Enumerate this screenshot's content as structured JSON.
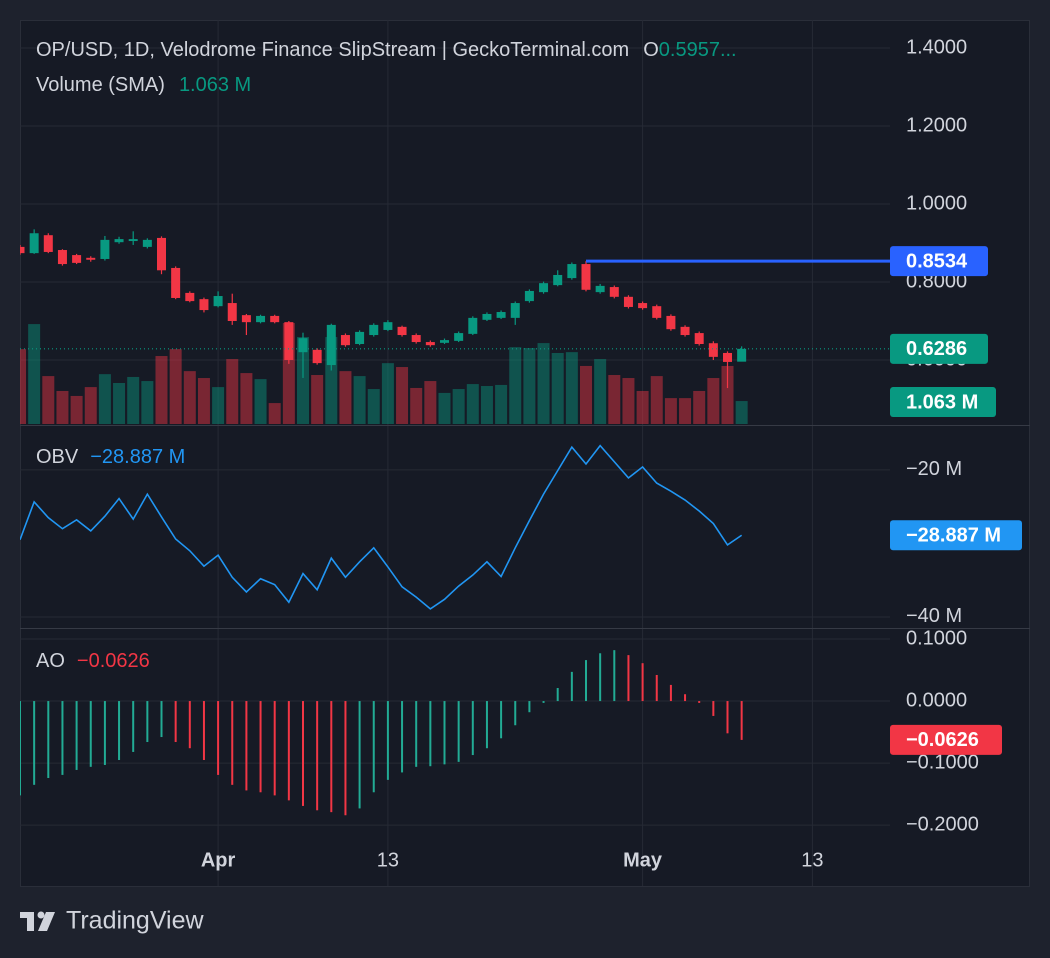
{
  "header": {
    "title": "OP/USD, 1D, Velodrome Finance SlipStream | GeckoTerminal.com",
    "open_label": "O",
    "open_value": "0.5957..."
  },
  "brand": "TradingView",
  "chart_data": [
    {
      "type": "candlestick",
      "categories": [
        null,
        null,
        null,
        null,
        null,
        null,
        null,
        null,
        null,
        null,
        null,
        null,
        null,
        null,
        "Apr",
        null,
        null,
        null,
        null,
        null,
        null,
        null,
        null,
        null,
        null,
        null,
        "13",
        null,
        null,
        null,
        null,
        null,
        null,
        null,
        null,
        null,
        null,
        null,
        null,
        null,
        null,
        null,
        null,
        null,
        "May",
        null,
        null,
        null,
        null,
        null,
        null,
        null,
        null,
        null,
        null,
        null,
        "13"
      ],
      "open": [
        0.89,
        0.874,
        0.92,
        0.882,
        0.869,
        0.862,
        0.859,
        0.902,
        0.905,
        0.89,
        0.913,
        0.836,
        0.772,
        0.756,
        0.738,
        0.746,
        0.715,
        0.697,
        0.713,
        0.697,
        0.62,
        0.626,
        0.587,
        0.664,
        0.641,
        0.664,
        0.677,
        0.685,
        0.664,
        0.646,
        0.644,
        0.649,
        0.667,
        0.703,
        0.708,
        0.708,
        0.751,
        0.774,
        0.792,
        0.81,
        0.846,
        0.774,
        0.787,
        0.762,
        0.746,
        0.738,
        0.713,
        0.685,
        0.669,
        0.643,
        0.618,
        0.5957,
        null,
        null,
        null,
        null,
        null
      ],
      "high": [
        0.895,
        0.935,
        0.925,
        0.884,
        0.872,
        0.866,
        0.918,
        0.916,
        0.93,
        0.912,
        0.917,
        0.84,
        0.776,
        0.76,
        0.776,
        0.77,
        0.718,
        0.716,
        0.716,
        0.7,
        0.67,
        0.63,
        0.693,
        0.668,
        0.676,
        0.694,
        0.702,
        0.688,
        0.668,
        0.65,
        0.655,
        0.673,
        0.712,
        0.722,
        0.727,
        0.75,
        0.781,
        0.801,
        0.83,
        0.85,
        0.8534,
        0.795,
        0.791,
        0.766,
        0.75,
        0.742,
        0.717,
        0.689,
        0.673,
        0.648,
        0.622,
        0.635,
        null,
        null,
        null,
        null,
        null
      ],
      "low": [
        0.87,
        0.872,
        0.874,
        0.842,
        0.846,
        0.852,
        0.855,
        0.898,
        0.895,
        0.886,
        0.82,
        0.756,
        0.748,
        0.722,
        0.735,
        0.69,
        0.664,
        0.694,
        0.694,
        0.59,
        0.554,
        0.588,
        0.573,
        0.634,
        0.638,
        0.66,
        0.674,
        0.66,
        0.642,
        0.634,
        0.641,
        0.646,
        0.664,
        0.7,
        0.705,
        0.69,
        0.747,
        0.77,
        0.789,
        0.806,
        0.776,
        0.77,
        0.758,
        0.732,
        0.729,
        0.704,
        0.675,
        0.66,
        0.637,
        0.6,
        0.528,
        0.598,
        null,
        null,
        null,
        null,
        null
      ],
      "close": [
        0.874,
        0.925,
        0.877,
        0.846,
        0.849,
        0.857,
        0.908,
        0.91,
        0.91,
        0.908,
        0.83,
        0.759,
        0.751,
        0.728,
        0.764,
        0.7,
        0.697,
        0.713,
        0.697,
        0.6,
        0.656,
        0.592,
        0.69,
        0.638,
        0.672,
        0.69,
        0.697,
        0.664,
        0.646,
        0.638,
        0.651,
        0.669,
        0.708,
        0.718,
        0.723,
        0.746,
        0.777,
        0.797,
        0.818,
        0.846,
        0.78,
        0.79,
        0.762,
        0.736,
        0.733,
        0.708,
        0.679,
        0.664,
        0.641,
        0.608,
        0.595,
        0.6286,
        null,
        null,
        null,
        null,
        null
      ],
      "up_color": "#089981",
      "down_color": "#f23645",
      "price_line": 0.8534,
      "price_line_color": "#2962ff",
      "volume": {
        "name": "Volume (SMA)",
        "values": [
          3.47,
          4.63,
          2.22,
          1.53,
          1.3,
          1.71,
          2.31,
          1.9,
          2.18,
          1.99,
          3.15,
          3.47,
          2.45,
          2.13,
          1.71,
          3.01,
          2.36,
          2.08,
          0.97,
          4.68,
          4.03,
          2.27,
          4.03,
          2.45,
          2.22,
          1.62,
          2.82,
          2.64,
          1.67,
          1.99,
          1.44,
          1.62,
          1.85,
          1.76,
          1.81,
          3.56,
          3.52,
          3.75,
          3.29,
          3.33,
          2.69,
          3.01,
          2.27,
          2.13,
          1.53,
          2.22,
          1.2,
          1.2,
          1.53,
          2.13,
          2.69,
          1.063,
          null,
          null,
          null,
          null,
          null
        ],
        "value_labels": [
          null,
          null,
          null,
          null,
          null,
          null,
          null,
          null,
          null,
          null,
          null,
          null,
          null,
          null,
          null,
          null,
          null,
          null,
          null,
          null,
          null,
          null,
          null,
          null,
          null,
          null,
          null,
          null,
          null,
          null,
          null,
          null,
          null,
          null,
          null,
          null,
          null,
          null,
          null,
          null,
          null,
          null,
          null,
          null,
          null,
          null,
          null,
          null,
          null,
          null,
          null,
          "1.063 M",
          null,
          null,
          null,
          null,
          null
        ]
      },
      "ylim": [
        0.4333,
        1.4718
      ],
      "yticks": [
        {
          "value": 1.4,
          "label": "1.4000"
        },
        {
          "value": 1.2,
          "label": "1.2000"
        },
        {
          "value": 1.0,
          "label": "1.0000"
        },
        {
          "value": 0.8,
          "label": "0.8000"
        },
        {
          "value": 0.6,
          "label": "0.6000"
        }
      ],
      "grid": true
    },
    {
      "type": "line",
      "series": [
        {
          "name": "OBV",
          "color": "#2196f3",
          "values": [
            -29.5,
            -24.35,
            -26.5,
            -28.0,
            -26.8,
            -28.3,
            -26.3,
            -23.9,
            -26.7,
            -23.3,
            -26.4,
            -29.4,
            -31.0,
            -33.1,
            -31.6,
            -34.6,
            -36.6,
            -34.8,
            -35.6,
            -38.0,
            -34.1,
            -36.3,
            -32.0,
            -34.6,
            -32.5,
            -30.6,
            -33.2,
            -35.9,
            -37.3,
            -38.9,
            -37.6,
            -35.8,
            -34.3,
            -32.5,
            -34.5,
            -30.6,
            -26.9,
            -23.3,
            -20.1,
            -16.9,
            -19.2,
            -16.7,
            -18.9,
            -21.1,
            -19.6,
            -21.8,
            -22.9,
            -24.1,
            -25.6,
            -27.3,
            -30.2,
            -28.887,
            null,
            null,
            null,
            null,
            null
          ],
          "value_labels": [
            null,
            null,
            null,
            null,
            null,
            null,
            null,
            null,
            null,
            null,
            null,
            null,
            null,
            null,
            null,
            null,
            null,
            null,
            null,
            null,
            null,
            null,
            null,
            null,
            null,
            null,
            null,
            null,
            null,
            null,
            null,
            null,
            null,
            null,
            null,
            null,
            null,
            null,
            null,
            null,
            null,
            null,
            null,
            null,
            null,
            null,
            null,
            null,
            null,
            null,
            null,
            "−28.887 M",
            null,
            null,
            null,
            null,
            null
          ]
        }
      ],
      "ylim": [
        -41.5,
        -13.9
      ],
      "yticks": [
        {
          "value": -20,
          "label": "−20 M"
        },
        {
          "value": -40,
          "label": "−40 M"
        }
      ],
      "grid": true
    },
    {
      "type": "bar",
      "series": [
        {
          "name": "AO",
          "values": [
            -0.152,
            -0.135,
            -0.124,
            -0.119,
            -0.111,
            -0.106,
            -0.103,
            -0.095,
            -0.082,
            -0.066,
            -0.058,
            -0.066,
            -0.076,
            -0.095,
            -0.119,
            -0.135,
            -0.144,
            -0.147,
            -0.152,
            -0.16,
            -0.169,
            -0.176,
            -0.179,
            -0.184,
            -0.173,
            -0.147,
            -0.127,
            -0.115,
            -0.106,
            -0.105,
            -0.102,
            -0.098,
            -0.087,
            -0.076,
            -0.06,
            -0.039,
            -0.018,
            -0.003,
            0.021,
            0.047,
            0.066,
            0.077,
            0.082,
            0.074,
            0.061,
            0.042,
            0.026,
            0.011,
            -0.003,
            -0.024,
            -0.052,
            -0.0626,
            null,
            null,
            null,
            null,
            null
          ],
          "value_labels": [
            null,
            null,
            null,
            null,
            null,
            null,
            null,
            null,
            null,
            null,
            null,
            null,
            null,
            null,
            null,
            null,
            null,
            null,
            null,
            null,
            null,
            null,
            null,
            null,
            null,
            null,
            null,
            null,
            null,
            null,
            null,
            null,
            null,
            null,
            null,
            null,
            null,
            null,
            null,
            null,
            null,
            null,
            null,
            null,
            null,
            null,
            null,
            null,
            null,
            null,
            null,
            "−0.0626",
            null,
            null,
            null,
            null,
            null
          ]
        }
      ],
      "up_color": "#22ab94",
      "down_color": "#f23645",
      "ylim": [
        -0.298,
        0.1177
      ],
      "yticks": [
        {
          "value": 0.1,
          "label": "0.1000"
        },
        {
          "value": 0,
          "label": "0.0000"
        },
        {
          "value": -0.1,
          "label": "−0.1000"
        },
        {
          "value": -0.2,
          "label": "−0.2000"
        }
      ],
      "grid": true
    }
  ]
}
